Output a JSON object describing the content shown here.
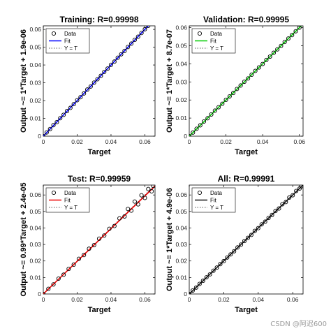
{
  "watermark": "CSDN @阿迟600",
  "legend_labels": [
    "Data",
    "Fit",
    "Y = T"
  ],
  "colors": {
    "data_marker": "#000000",
    "tt_line": "#555555"
  },
  "chart_data": [
    {
      "type": "scatter",
      "title": "Training: R=0.99998",
      "xlabel": "Target",
      "ylabel": "Output ~= 1*Target + 1.9e-06",
      "xlim": [
        0,
        0.066
      ],
      "ylim": [
        0,
        0.062
      ],
      "xticks": [
        0,
        0.02,
        0.04,
        0.06
      ],
      "xtick_labels": [
        "0",
        "0.02",
        "0.04",
        "0.06"
      ],
      "yticks": [
        0,
        0.01,
        0.02,
        0.03,
        0.04,
        0.05,
        0.06
      ],
      "ytick_labels": [
        "0",
        "0.01",
        "0.02",
        "0.03",
        "0.04",
        "0.05",
        "0.06"
      ],
      "fit": {
        "slope": 1,
        "intercept": 1.9e-06,
        "color": "#0000ff"
      },
      "points": [
        [
          0.0,
          0.0
        ],
        [
          0.002,
          0.0021
        ],
        [
          0.004,
          0.004
        ],
        [
          0.006,
          0.0062
        ],
        [
          0.008,
          0.0079
        ],
        [
          0.01,
          0.0101
        ],
        [
          0.012,
          0.012
        ],
        [
          0.014,
          0.0141
        ],
        [
          0.016,
          0.0159
        ],
        [
          0.018,
          0.018
        ],
        [
          0.02,
          0.0202
        ],
        [
          0.022,
          0.0219
        ],
        [
          0.024,
          0.024
        ],
        [
          0.026,
          0.0262
        ],
        [
          0.028,
          0.0279
        ],
        [
          0.03,
          0.0301
        ],
        [
          0.032,
          0.032
        ],
        [
          0.034,
          0.0339
        ],
        [
          0.036,
          0.0361
        ],
        [
          0.038,
          0.038
        ],
        [
          0.04,
          0.0401
        ],
        [
          0.042,
          0.0419
        ],
        [
          0.044,
          0.0441
        ],
        [
          0.046,
          0.046
        ],
        [
          0.048,
          0.0479
        ],
        [
          0.05,
          0.0501
        ],
        [
          0.052,
          0.052
        ],
        [
          0.054,
          0.0541
        ],
        [
          0.056,
          0.0559
        ],
        [
          0.058,
          0.058
        ],
        [
          0.06,
          0.0601
        ],
        [
          0.062,
          0.062
        ],
        [
          0.064,
          0.064
        ],
        [
          0.065,
          0.065
        ]
      ],
      "legend": "top-left",
      "grid": false
    },
    {
      "type": "scatter",
      "title": "Validation: R=0.99995",
      "xlabel": "Target",
      "ylabel": "Output ~= 1*Target + 8.7e-07",
      "xlim": [
        0,
        0.062
      ],
      "ylim": [
        0,
        0.061
      ],
      "xticks": [
        0,
        0.02,
        0.04,
        0.06
      ],
      "xtick_labels": [
        "0",
        "0.02",
        "0.04",
        "0.06"
      ],
      "yticks": [
        0,
        0.01,
        0.02,
        0.03,
        0.04,
        0.05,
        0.06
      ],
      "ytick_labels": [
        "0",
        "0.01",
        "0.02",
        "0.03",
        "0.04",
        "0.05",
        "0.06"
      ],
      "fit": {
        "slope": 1,
        "intercept": 8.7e-07,
        "color": "#00cc00"
      },
      "points": [
        [
          0.0,
          0.0
        ],
        [
          0.002,
          0.002
        ],
        [
          0.004,
          0.0041
        ],
        [
          0.006,
          0.006
        ],
        [
          0.008,
          0.0081
        ],
        [
          0.01,
          0.0099
        ],
        [
          0.012,
          0.012
        ],
        [
          0.014,
          0.0141
        ],
        [
          0.016,
          0.016
        ],
        [
          0.018,
          0.0179
        ],
        [
          0.02,
          0.0201
        ],
        [
          0.022,
          0.022
        ],
        [
          0.024,
          0.0239
        ],
        [
          0.026,
          0.0261
        ],
        [
          0.028,
          0.028
        ],
        [
          0.03,
          0.0301
        ],
        [
          0.032,
          0.0319
        ],
        [
          0.034,
          0.034
        ],
        [
          0.036,
          0.0361
        ],
        [
          0.038,
          0.038
        ],
        [
          0.04,
          0.0399
        ],
        [
          0.042,
          0.0421
        ],
        [
          0.044,
          0.044
        ],
        [
          0.046,
          0.0461
        ],
        [
          0.048,
          0.048
        ],
        [
          0.05,
          0.0499
        ],
        [
          0.052,
          0.0521
        ],
        [
          0.054,
          0.054
        ],
        [
          0.056,
          0.0559
        ],
        [
          0.058,
          0.058
        ],
        [
          0.06,
          0.06
        ]
      ],
      "legend": "top-left",
      "grid": false
    },
    {
      "type": "scatter",
      "title": "Test: R=0.99959",
      "xlabel": "Target",
      "ylabel": "Output ~= 0.99*Target + 2.4e-05",
      "xlim": [
        0,
        0.066
      ],
      "ylim": [
        0,
        0.066
      ],
      "xticks": [
        0,
        0.02,
        0.04,
        0.06
      ],
      "xtick_labels": [
        "0",
        "0.02",
        "0.04",
        "0.06"
      ],
      "yticks": [
        0,
        0.01,
        0.02,
        0.03,
        0.04,
        0.05,
        0.06
      ],
      "ytick_labels": [
        "0",
        "0.01",
        "0.02",
        "0.03",
        "0.04",
        "0.05",
        "0.06"
      ],
      "fit": {
        "slope": 0.99,
        "intercept": 2.4e-05,
        "color": "#ee0000"
      },
      "points": [
        [
          0.0,
          0.0
        ],
        [
          0.003,
          0.0031
        ],
        [
          0.006,
          0.0058
        ],
        [
          0.009,
          0.0093
        ],
        [
          0.012,
          0.0117
        ],
        [
          0.015,
          0.0152
        ],
        [
          0.018,
          0.0178
        ],
        [
          0.021,
          0.0213
        ],
        [
          0.024,
          0.0236
        ],
        [
          0.027,
          0.0274
        ],
        [
          0.03,
          0.0296
        ],
        [
          0.033,
          0.0335
        ],
        [
          0.036,
          0.0354
        ],
        [
          0.039,
          0.0395
        ],
        [
          0.042,
          0.0412
        ],
        [
          0.045,
          0.0458
        ],
        [
          0.048,
          0.047
        ],
        [
          0.05,
          0.0515
        ],
        [
          0.052,
          0.0505
        ],
        [
          0.054,
          0.056
        ],
        [
          0.056,
          0.0543
        ],
        [
          0.058,
          0.0598
        ],
        [
          0.06,
          0.0582
        ],
        [
          0.062,
          0.0636
        ],
        [
          0.064,
          0.0622
        ],
        [
          0.065,
          0.0655
        ]
      ],
      "legend": "top-left",
      "grid": false
    },
    {
      "type": "scatter",
      "title": "All: R=0.99991",
      "xlabel": "Target",
      "ylabel": "Output ~= 1*Target + 4.9e-06",
      "xlim": [
        0,
        0.066
      ],
      "ylim": [
        0,
        0.066
      ],
      "xticks": [
        0,
        0.02,
        0.04,
        0.06
      ],
      "xtick_labels": [
        "0",
        "0.02",
        "0.04",
        "0.06"
      ],
      "yticks": [
        0,
        0.01,
        0.02,
        0.03,
        0.04,
        0.05,
        0.06
      ],
      "ytick_labels": [
        "0",
        "0.01",
        "0.02",
        "0.03",
        "0.04",
        "0.05",
        "0.06"
      ],
      "fit": {
        "slope": 1,
        "intercept": 4.9e-06,
        "color": "#111111"
      },
      "points": [
        [
          0.0,
          0.0
        ],
        [
          0.002,
          0.0021
        ],
        [
          0.004,
          0.0039
        ],
        [
          0.006,
          0.0061
        ],
        [
          0.008,
          0.008
        ],
        [
          0.01,
          0.0101
        ],
        [
          0.012,
          0.0119
        ],
        [
          0.014,
          0.0141
        ],
        [
          0.016,
          0.016
        ],
        [
          0.018,
          0.0181
        ],
        [
          0.02,
          0.0199
        ],
        [
          0.022,
          0.0221
        ],
        [
          0.024,
          0.024
        ],
        [
          0.026,
          0.0259
        ],
        [
          0.028,
          0.0282
        ],
        [
          0.03,
          0.0299
        ],
        [
          0.032,
          0.0321
        ],
        [
          0.034,
          0.034
        ],
        [
          0.036,
          0.0358
        ],
        [
          0.038,
          0.0382
        ],
        [
          0.04,
          0.0399
        ],
        [
          0.042,
          0.0422
        ],
        [
          0.044,
          0.0438
        ],
        [
          0.046,
          0.0461
        ],
        [
          0.048,
          0.0479
        ],
        [
          0.05,
          0.0503
        ],
        [
          0.052,
          0.0518
        ],
        [
          0.054,
          0.0544
        ],
        [
          0.056,
          0.0557
        ],
        [
          0.058,
          0.0584
        ],
        [
          0.06,
          0.0598
        ],
        [
          0.062,
          0.0624
        ],
        [
          0.064,
          0.0639
        ],
        [
          0.065,
          0.0652
        ]
      ],
      "legend": "top-left",
      "grid": false
    }
  ]
}
